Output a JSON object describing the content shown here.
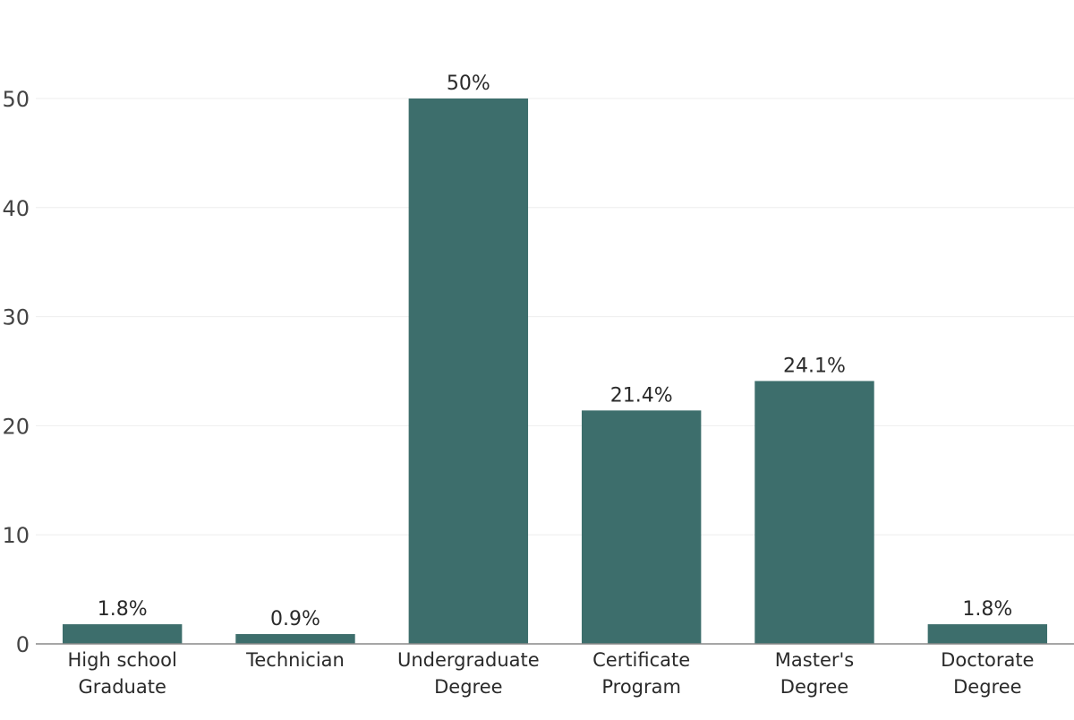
{
  "chart_data": {
    "type": "bar",
    "categories": [
      [
        "High school",
        "Graduate"
      ],
      [
        "Technician"
      ],
      [
        "Undergraduate",
        "Degree"
      ],
      [
        "Certificate",
        "Program"
      ],
      [
        "Master's",
        "Degree"
      ],
      [
        "Doctorate",
        "Degree"
      ]
    ],
    "values": [
      1.8,
      0.9,
      50,
      21.4,
      24.1,
      1.8
    ],
    "data_labels": [
      "1.8%",
      "0.9%",
      "50%",
      "21.4%",
      "24.1%",
      "1.8%"
    ],
    "title": "",
    "xlabel": "",
    "ylabel": "",
    "ylim": [
      0,
      55
    ],
    "yticks": [
      0,
      10,
      20,
      30,
      40,
      50
    ],
    "ytick_labels": [
      "0",
      "10",
      "20",
      "30",
      "40",
      "50"
    ],
    "grid": true,
    "legend": "none",
    "colors": {
      "bar": "#3d6e6c",
      "grid": "#eeeeee",
      "axis": "#888888",
      "text": "#2a2a2a",
      "tick_text": "#444444"
    }
  }
}
